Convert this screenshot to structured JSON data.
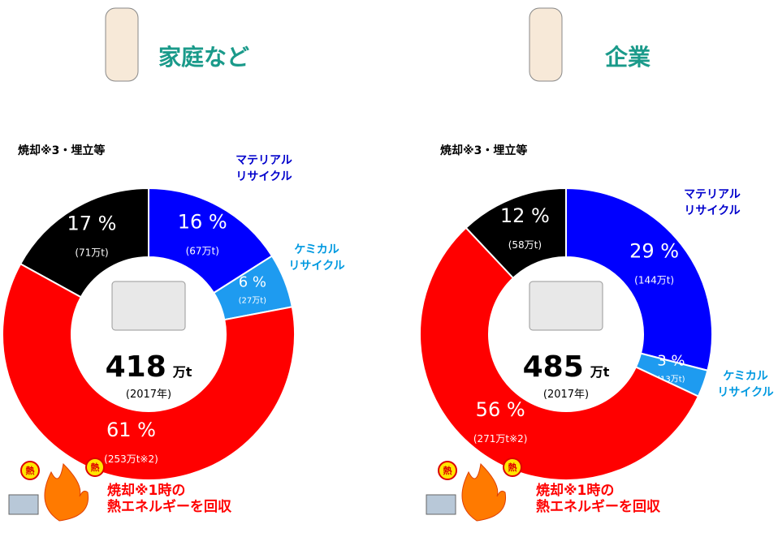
{
  "chart_data": [
    {
      "type": "donut",
      "title": "家庭など",
      "total": 418,
      "total_unit": "万t",
      "year": "(2017年)",
      "badge": "熱",
      "categories": [
        [
          "マテリアル",
          "リサイクル"
        ],
        [
          "ケミカル",
          "リサイクル"
        ],
        [
          "焼却※1時の",
          "熱エネルギーを回収"
        ],
        [
          "焼却※3・埋立等"
        ]
      ],
      "values": [
        16,
        6,
        61,
        17
      ],
      "value_labels": [
        "16 %",
        "6 %",
        "61 %",
        "17 %"
      ],
      "tonnage": [
        67,
        27,
        253,
        71
      ],
      "tonnage_labels": [
        "(67万t)",
        "(27万t)",
        "(253万t※2)",
        "(71万t)"
      ],
      "colors": [
        "#0000ff",
        "#1e9bf0",
        "#ff0000",
        "#000000"
      ]
    },
    {
      "type": "donut",
      "title": "企業",
      "total": 485,
      "total_unit": "万t",
      "year": "(2017年)",
      "badge": "熱",
      "categories": [
        [
          "マテリアル",
          "リサイクル"
        ],
        [
          "ケミカル",
          "リサイクル"
        ],
        [
          "焼却※1時の",
          "熱エネルギーを回収"
        ],
        [
          "焼却※3・埋立等"
        ]
      ],
      "values": [
        29,
        3,
        56,
        12
      ],
      "value_labels": [
        "29 %",
        "3 %",
        "56 %",
        "12 %"
      ],
      "tonnage": [
        144,
        13,
        271,
        58
      ],
      "tonnage_labels": [
        "(144万t)",
        "(13万t)",
        "(271万t※2)",
        "(58万t)"
      ],
      "colors": [
        "#0000ff",
        "#1e9bf0",
        "#ff0000",
        "#000000"
      ]
    }
  ]
}
